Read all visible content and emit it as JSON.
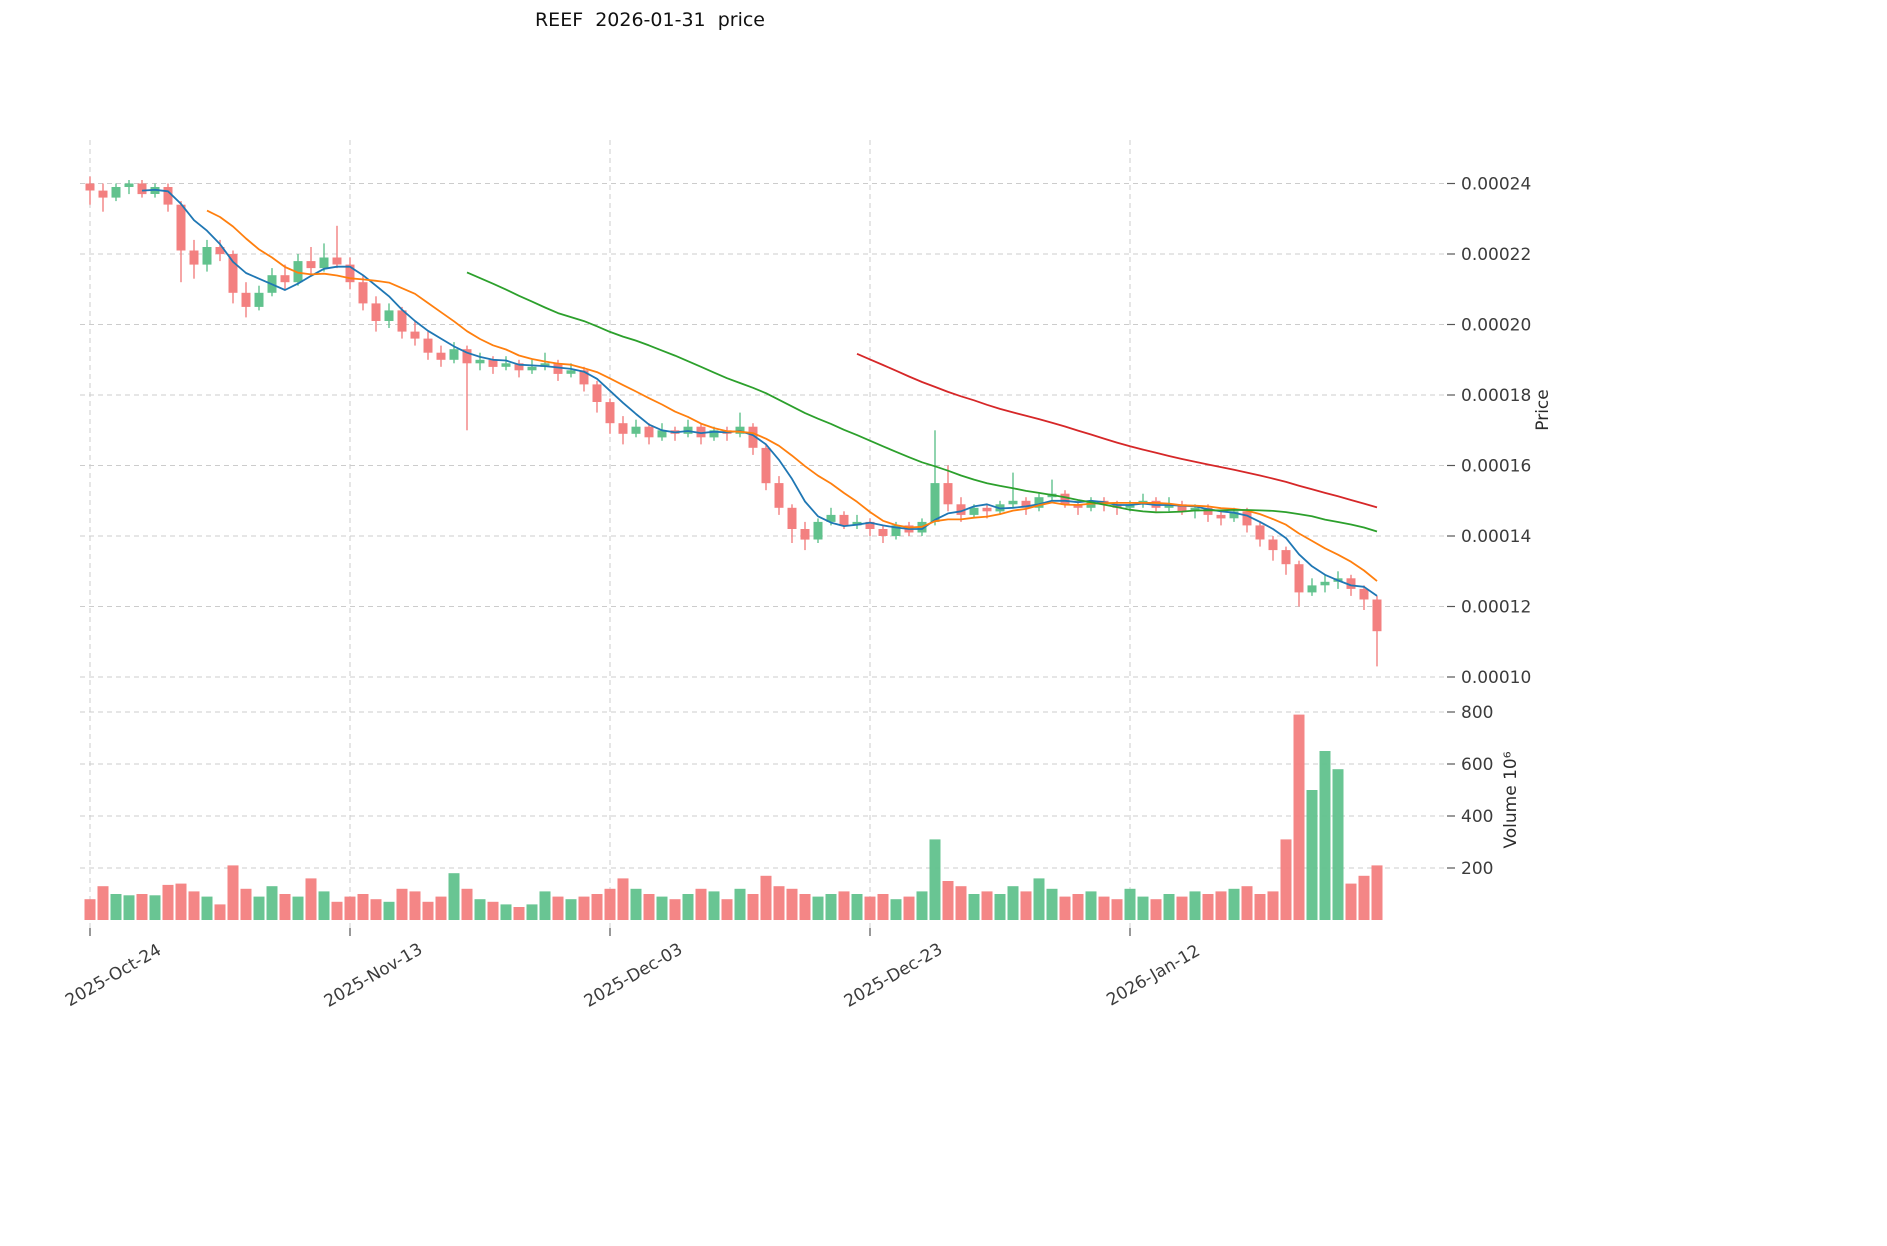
{
  "title": "REEF  2026-01-31  price",
  "chart_data": {
    "type": "candlestick",
    "title": "REEF  2026-01-31  price",
    "grid": true,
    "legend": null,
    "colors": {
      "up": "#61c28d",
      "down": "#f38080",
      "grid": "#cccccc"
    },
    "price_unit": 1e-06,
    "x_axis": {
      "tick_labels": [
        "2025-Oct-24",
        "2025-Nov-13",
        "2025-Dec-03",
        "2025-Dec-23",
        "2026-Jan-12"
      ],
      "tick_indices": [
        0,
        20,
        40,
        60,
        80
      ],
      "n_candles": 100,
      "frequency": "daily"
    },
    "price_axis": {
      "label": "Price",
      "side": "right",
      "ticks": [
        0.00024,
        0.00022,
        0.0002,
        0.00018,
        0.00016,
        0.00014,
        0.00012,
        0.0001
      ],
      "range": [
        9.7e-05,
        0.000246
      ]
    },
    "volume_axis": {
      "label": "Volume 10⁶",
      "side": "right",
      "ticks": [
        800,
        600,
        400,
        200
      ],
      "unit_millions": true,
      "range": [
        0,
        880
      ]
    },
    "moving_averages": [
      {
        "name": "sma5",
        "window": 5,
        "color": "#1f77b4"
      },
      {
        "name": "sma10",
        "window": 10,
        "color": "#ff7f0e"
      },
      {
        "name": "sma30",
        "window": 30,
        "color": "#2ca02c"
      },
      {
        "name": "sma60",
        "window": 60,
        "color": "#d62728"
      }
    ],
    "open": [
      240,
      238,
      236,
      239,
      240,
      237,
      239,
      234,
      221,
      217,
      222,
      220,
      209,
      205,
      209,
      214,
      212,
      218,
      216,
      219,
      217,
      212,
      206,
      201,
      204,
      198,
      196,
      192,
      190,
      193,
      189,
      190,
      188,
      189,
      187,
      188,
      189,
      186,
      187,
      183,
      178,
      172,
      169,
      171,
      168,
      170,
      169,
      171,
      168,
      170,
      169,
      171,
      165,
      155,
      148,
      142,
      139,
      144,
      146,
      143,
      144,
      142,
      140,
      143,
      141,
      144,
      155,
      149,
      146,
      148,
      147,
      149,
      150,
      148,
      151,
      152,
      149,
      148,
      150,
      149,
      148,
      149,
      150,
      148,
      149,
      147,
      148,
      146,
      145,
      147,
      143,
      139,
      136,
      132,
      124,
      126,
      127,
      128,
      125,
      122
    ],
    "high": [
      242,
      240,
      240,
      241,
      241,
      240,
      240,
      235,
      224,
      224,
      224,
      221,
      212,
      211,
      216,
      217,
      220,
      222,
      223,
      228,
      219,
      214,
      208,
      206,
      205,
      201,
      198,
      194,
      195,
      194,
      192,
      191,
      191,
      190,
      190,
      192,
      190,
      189,
      188,
      184,
      179,
      174,
      173,
      172,
      172,
      171,
      173,
      172,
      171,
      171,
      175,
      172,
      166,
      157,
      149,
      144,
      145,
      148,
      147,
      146,
      145,
      143,
      144,
      144,
      145,
      170,
      160,
      151,
      149,
      149,
      150,
      158,
      151,
      152,
      156,
      153,
      150,
      151,
      151,
      150,
      150,
      152,
      151,
      151,
      150,
      149,
      149,
      147,
      148,
      148,
      144,
      140,
      137,
      133,
      128,
      129,
      130,
      129,
      126,
      123
    ],
    "low": [
      234,
      232,
      235,
      237,
      236,
      236,
      232,
      212,
      213,
      215,
      218,
      206,
      202,
      204,
      208,
      210,
      211,
      214,
      215,
      216,
      210,
      204,
      198,
      199,
      196,
      194,
      190,
      188,
      189,
      170,
      187,
      186,
      187,
      185,
      186,
      187,
      184,
      185,
      181,
      175,
      169,
      166,
      168,
      166,
      167,
      167,
      168,
      166,
      167,
      167,
      168,
      163,
      153,
      146,
      138,
      136,
      138,
      143,
      142,
      142,
      140,
      138,
      139,
      140,
      140,
      143,
      147,
      144,
      145,
      145,
      146,
      148,
      146,
      147,
      150,
      148,
      146,
      147,
      147,
      146,
      147,
      148,
      147,
      147,
      146,
      145,
      144,
      143,
      144,
      141,
      137,
      133,
      129,
      120,
      123,
      124,
      125,
      123,
      119,
      103
    ],
    "close": [
      238,
      236,
      239,
      240,
      237,
      239,
      234,
      221,
      217,
      222,
      220,
      209,
      205,
      209,
      214,
      212,
      218,
      216,
      219,
      217,
      212,
      206,
      201,
      204,
      198,
      196,
      192,
      190,
      193,
      189,
      190,
      188,
      189,
      187,
      188,
      189,
      186,
      187,
      183,
      178,
      172,
      169,
      171,
      168,
      170,
      169,
      171,
      168,
      170,
      169,
      171,
      165,
      155,
      148,
      142,
      139,
      144,
      146,
      143,
      144,
      142,
      140,
      143,
      141,
      144,
      155,
      149,
      146,
      148,
      147,
      149,
      150,
      148,
      151,
      152,
      149,
      148,
      150,
      149,
      148,
      149,
      150,
      148,
      149,
      147,
      148,
      146,
      145,
      147,
      143,
      139,
      136,
      132,
      124,
      126,
      127,
      128,
      125,
      122,
      113
    ],
    "volume_millions": [
      80,
      130,
      100,
      95,
      100,
      95,
      135,
      140,
      110,
      90,
      60,
      210,
      120,
      90,
      130,
      100,
      90,
      160,
      110,
      70,
      90,
      100,
      80,
      70,
      120,
      110,
      70,
      90,
      180,
      120,
      80,
      70,
      60,
      50,
      60,
      110,
      90,
      80,
      90,
      100,
      120,
      160,
      120,
      100,
      90,
      80,
      100,
      120,
      110,
      80,
      120,
      100,
      170,
      130,
      120,
      100,
      90,
      100,
      110,
      100,
      90,
      100,
      80,
      90,
      110,
      310,
      150,
      130,
      100,
      110,
      100,
      130,
      110,
      160,
      120,
      90,
      100,
      110,
      90,
      80,
      120,
      90,
      80,
      100,
      90,
      110,
      100,
      110,
      120,
      130,
      100,
      110,
      310,
      790,
      500,
      650,
      580,
      140,
      170,
      210
    ]
  }
}
